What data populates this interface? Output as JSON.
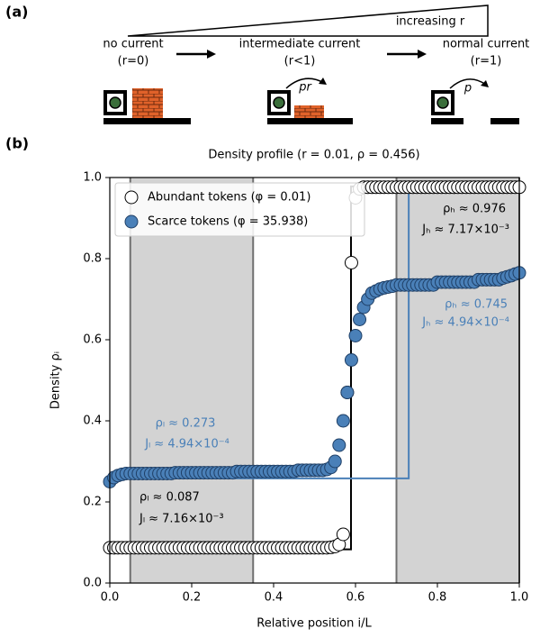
{
  "panel_labels": [
    "(a)",
    "(b)"
  ],
  "diagram": {
    "wedge_label": "increasing r",
    "states": [
      {
        "label": "no current",
        "condition": "(r=0)"
      },
      {
        "label": "intermediate current",
        "condition": "(r<1)"
      },
      {
        "label": "normal current",
        "condition": "(r=1)"
      }
    ],
    "arrow_labels": [
      "pr",
      "p"
    ]
  },
  "chart_data": {
    "type": "scatter",
    "title": "Density profile (r = 0.01, ρ = 0.456)",
    "xlabel": "Relative position i/L",
    "ylabel": "Density ρᵢ",
    "x": [
      0,
      0.01,
      0.02,
      0.03,
      0.04,
      0.05,
      0.06,
      0.07,
      0.08,
      0.09,
      0.1,
      0.11,
      0.12,
      0.13,
      0.14,
      0.15,
      0.16,
      0.17,
      0.18,
      0.19,
      0.2,
      0.21,
      0.22,
      0.23,
      0.24,
      0.25,
      0.26,
      0.27,
      0.28,
      0.29,
      0.3,
      0.31,
      0.32,
      0.33,
      0.34,
      0.35,
      0.36,
      0.37,
      0.38,
      0.39,
      0.4,
      0.41,
      0.42,
      0.43,
      0.44,
      0.45,
      0.46,
      0.47,
      0.48,
      0.49,
      0.5,
      0.51,
      0.52,
      0.53,
      0.54,
      0.55,
      0.56,
      0.57,
      0.58,
      0.59,
      0.6,
      0.61,
      0.62,
      0.63,
      0.64,
      0.65,
      0.66,
      0.67,
      0.68,
      0.69,
      0.7,
      0.71,
      0.72,
      0.73,
      0.74,
      0.75,
      0.76,
      0.77,
      0.78,
      0.79,
      0.8,
      0.81,
      0.82,
      0.83,
      0.84,
      0.85,
      0.86,
      0.87,
      0.88,
      0.89,
      0.9,
      0.91,
      0.92,
      0.93,
      0.94,
      0.95,
      0.96,
      0.97,
      0.98,
      0.99,
      1
    ],
    "series": [
      {
        "name": "Abundant tokens (φ = 0.01)",
        "color": "#ffffff",
        "edge": "#000000",
        "values": [
          0.087,
          0.087,
          0.087,
          0.087,
          0.087,
          0.087,
          0.087,
          0.087,
          0.087,
          0.087,
          0.087,
          0.087,
          0.087,
          0.087,
          0.087,
          0.087,
          0.087,
          0.087,
          0.087,
          0.087,
          0.087,
          0.087,
          0.087,
          0.087,
          0.087,
          0.087,
          0.087,
          0.087,
          0.087,
          0.087,
          0.087,
          0.087,
          0.087,
          0.087,
          0.087,
          0.087,
          0.087,
          0.087,
          0.087,
          0.087,
          0.087,
          0.087,
          0.087,
          0.087,
          0.087,
          0.087,
          0.087,
          0.087,
          0.087,
          0.087,
          0.087,
          0.087,
          0.087,
          0.087,
          0.088,
          0.09,
          0.095,
          0.12,
          0.47,
          0.79,
          0.95,
          0.972,
          0.976,
          0.976,
          0.976,
          0.976,
          0.976,
          0.976,
          0.976,
          0.976,
          0.976,
          0.976,
          0.976,
          0.976,
          0.976,
          0.976,
          0.976,
          0.976,
          0.976,
          0.976,
          0.976,
          0.976,
          0.976,
          0.976,
          0.976,
          0.976,
          0.976,
          0.976,
          0.976,
          0.976,
          0.976,
          0.976,
          0.976,
          0.976,
          0.976,
          0.976,
          0.976,
          0.976,
          0.976,
          0.976,
          0.976
        ]
      },
      {
        "name": "Scarce tokens (φ = 35.938)",
        "color": "#4a80b8",
        "edge": "#1f3f66",
        "values": [
          0.25,
          0.26,
          0.265,
          0.268,
          0.27,
          0.27,
          0.27,
          0.27,
          0.27,
          0.27,
          0.27,
          0.27,
          0.27,
          0.27,
          0.27,
          0.27,
          0.272,
          0.272,
          0.272,
          0.272,
          0.272,
          0.272,
          0.272,
          0.272,
          0.272,
          0.272,
          0.272,
          0.272,
          0.272,
          0.272,
          0.272,
          0.275,
          0.275,
          0.275,
          0.275,
          0.275,
          0.275,
          0.275,
          0.275,
          0.275,
          0.275,
          0.275,
          0.275,
          0.275,
          0.275,
          0.275,
          0.278,
          0.278,
          0.278,
          0.278,
          0.278,
          0.278,
          0.278,
          0.28,
          0.285,
          0.3,
          0.34,
          0.4,
          0.47,
          0.55,
          0.61,
          0.65,
          0.68,
          0.7,
          0.715,
          0.72,
          0.725,
          0.728,
          0.73,
          0.732,
          0.735,
          0.735,
          0.735,
          0.735,
          0.735,
          0.735,
          0.735,
          0.735,
          0.735,
          0.735,
          0.742,
          0.742,
          0.742,
          0.742,
          0.742,
          0.742,
          0.742,
          0.742,
          0.742,
          0.742,
          0.748,
          0.748,
          0.748,
          0.748,
          0.748,
          0.748,
          0.752,
          0.755,
          0.758,
          0.762,
          0.765
        ]
      }
    ],
    "step_lines": [
      {
        "color": "#000000",
        "x": [
          0,
          0.589,
          0.589,
          1
        ],
        "y": [
          0.083,
          0.083,
          0.978,
          0.978
        ]
      },
      {
        "color": "#4a80b8",
        "x": [
          0,
          0.73,
          0.73
        ],
        "y": [
          0.258,
          0.258,
          0.965
        ]
      }
    ],
    "shaded_regions": [
      [
        0.05,
        0.35
      ],
      [
        0.7,
        1
      ]
    ],
    "annotations": [
      {
        "text": "ρₕ ≈ 0.976",
        "color": "#000000"
      },
      {
        "text": "Jₕ ≈ 7.17×10⁻³",
        "color": "#000000"
      },
      {
        "text": "ρₕ ≈ 0.745",
        "color": "#4a80b8"
      },
      {
        "text": "Jₕ ≈ 4.94×10⁻⁴",
        "color": "#4a80b8"
      },
      {
        "text": "ρₗ ≈ 0.273",
        "color": "#4a80b8"
      },
      {
        "text": "Jₗ ≈ 4.94×10⁻⁴",
        "color": "#4a80b8"
      },
      {
        "text": "ρₗ ≈ 0.087",
        "color": "#000000"
      },
      {
        "text": "Jₗ ≈ 7.16×10⁻³",
        "color": "#000000"
      }
    ],
    "xlim": [
      0,
      1
    ],
    "ylim": [
      0,
      1
    ],
    "xticks": [
      {
        "value": 0,
        "label": "0.0"
      },
      0.2,
      0.4,
      0.6,
      0.8,
      {
        "value": 1,
        "label": "1.0"
      }
    ],
    "yticks": [
      {
        "value": 0,
        "label": "0.0"
      },
      0.2,
      0.4,
      0.6,
      0.8,
      {
        "value": 1,
        "label": "1.0"
      }
    ],
    "legend": "upper left"
  }
}
